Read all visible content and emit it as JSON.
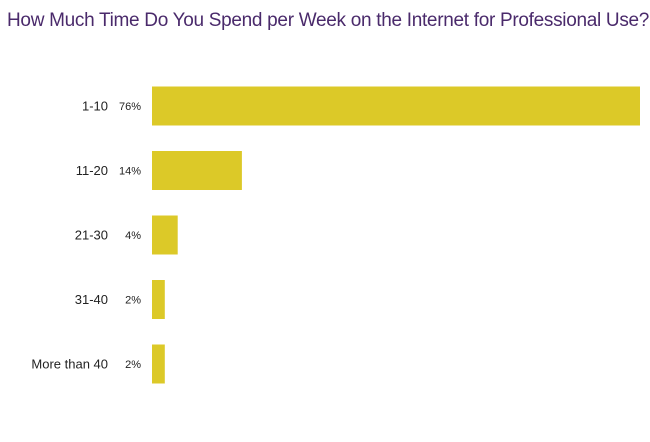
{
  "colors": {
    "title": "#4a2a6b",
    "bar": "#dcc928",
    "text": "#222222",
    "background": "#ffffff"
  },
  "chart_data": {
    "type": "bar",
    "orientation": "horizontal",
    "title": "How Much Time Do You Spend per Week on the Internet for Professional Use?",
    "xlabel": "",
    "ylabel": "",
    "categories": [
      "1-10",
      "11-20",
      "21-30",
      "31-40",
      "More than 40"
    ],
    "values": [
      76,
      14,
      4,
      2,
      2
    ],
    "value_labels": [
      "76%",
      "14%",
      "4%",
      "2%",
      "2%"
    ],
    "value_suffix": "%",
    "xlim": [
      0,
      76
    ],
    "grid": false,
    "legend": "none"
  }
}
